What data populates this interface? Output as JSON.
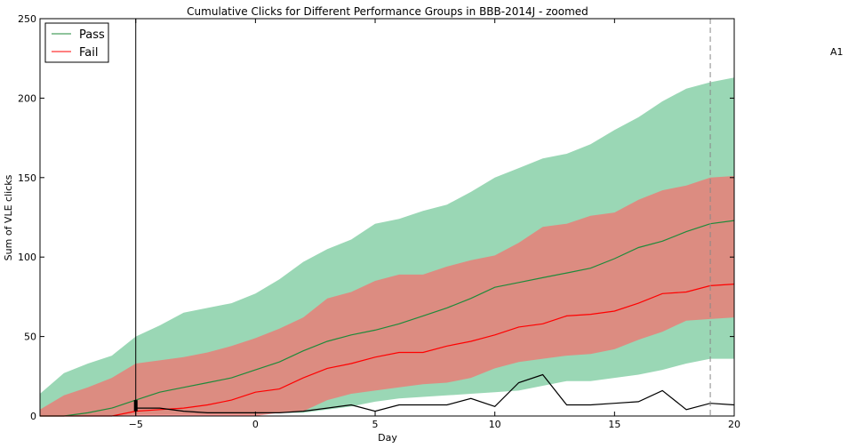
{
  "chart_data": {
    "type": "area",
    "title": "Cumulative Clicks for Different Performance Groups in BBB-2014J - zoomed",
    "xlabel": "Day",
    "ylabel": "Sum of VLE clicks",
    "xlim": [
      -9,
      20
    ],
    "ylim": [
      0,
      250
    ],
    "xticks": [
      -5,
      0,
      5,
      10,
      15,
      20
    ],
    "yticks": [
      0,
      50,
      100,
      150,
      200,
      250
    ],
    "x_tick_labels": [
      "−5",
      "0",
      "5",
      "10",
      "15",
      "20"
    ],
    "y_tick_labels": [
      "0",
      "50",
      "100",
      "150",
      "200",
      "250"
    ],
    "grid": false,
    "legend_position": "top-left",
    "x": [
      -9,
      -8,
      -7,
      -6,
      -5,
      -4,
      -3,
      -2,
      -1,
      0,
      1,
      2,
      3,
      4,
      5,
      6,
      7,
      8,
      9,
      10,
      11,
      12,
      13,
      14,
      15,
      16,
      17,
      18,
      19,
      20
    ],
    "series": [
      {
        "name": "Pass",
        "color": "#1f8a3a",
        "band_color": "#66c28f",
        "values": [
          0,
          0,
          2,
          5,
          10,
          15,
          18,
          21,
          24,
          29,
          34,
          41,
          47,
          51,
          54,
          58,
          63,
          68,
          74,
          81,
          84,
          87,
          90,
          93,
          99,
          106,
          110,
          116,
          121,
          123
        ],
        "upper": [
          14,
          27,
          33,
          38,
          50,
          57,
          65,
          68,
          71,
          77,
          86,
          97,
          105,
          111,
          121,
          124,
          129,
          133,
          141,
          150,
          156,
          162,
          165,
          171,
          180,
          188,
          198,
          206,
          210,
          213
        ],
        "lower": [
          0,
          0,
          0,
          0,
          1,
          1,
          1,
          1,
          1,
          1,
          2,
          2,
          4,
          6,
          9,
          11,
          12,
          13,
          14,
          15,
          16,
          19,
          22,
          22,
          24,
          26,
          29,
          33,
          36,
          36
        ]
      },
      {
        "name": "Fail",
        "color": "#ff0000",
        "band_color": "#ff6666",
        "values": [
          0,
          0,
          0,
          0,
          3,
          4,
          5,
          7,
          10,
          15,
          17,
          24,
          30,
          33,
          37,
          40,
          40,
          44,
          47,
          51,
          56,
          58,
          63,
          64,
          66,
          71,
          77,
          78,
          82,
          83
        ],
        "upper": [
          4,
          13,
          18,
          24,
          33,
          35,
          37,
          40,
          44,
          49,
          55,
          62,
          74,
          78,
          85,
          89,
          89,
          94,
          98,
          101,
          109,
          119,
          121,
          126,
          128,
          136,
          142,
          145,
          150,
          151
        ],
        "lower": [
          0,
          0,
          0,
          0,
          0,
          0,
          0,
          0,
          0,
          0,
          2,
          3,
          10,
          14,
          16,
          18,
          20,
          21,
          24,
          30,
          34,
          36,
          38,
          39,
          42,
          48,
          53,
          60,
          61,
          62
        ]
      },
      {
        "color": "#000000",
        "x": [
          -5,
          -4,
          -3,
          -2,
          -1,
          0,
          1,
          2,
          3,
          4,
          5,
          6,
          7,
          8,
          9,
          10,
          11,
          12,
          13,
          14,
          15,
          16,
          17,
          18,
          19,
          20
        ],
        "values": [
          5,
          5,
          3,
          2,
          2,
          2,
          2,
          3,
          5,
          7,
          3,
          7,
          7,
          7,
          11,
          6,
          21,
          26,
          7,
          7,
          8,
          9,
          16,
          4,
          8,
          7
        ]
      }
    ],
    "vlines": [
      {
        "x": -5,
        "style": "solid",
        "color": "#000000"
      },
      {
        "x": 19,
        "style": "dashed",
        "color": "#888888"
      }
    ],
    "marker": {
      "x": -5,
      "y_from": 3,
      "y_to": 10,
      "color": "#000000"
    },
    "annotation": "A1"
  }
}
